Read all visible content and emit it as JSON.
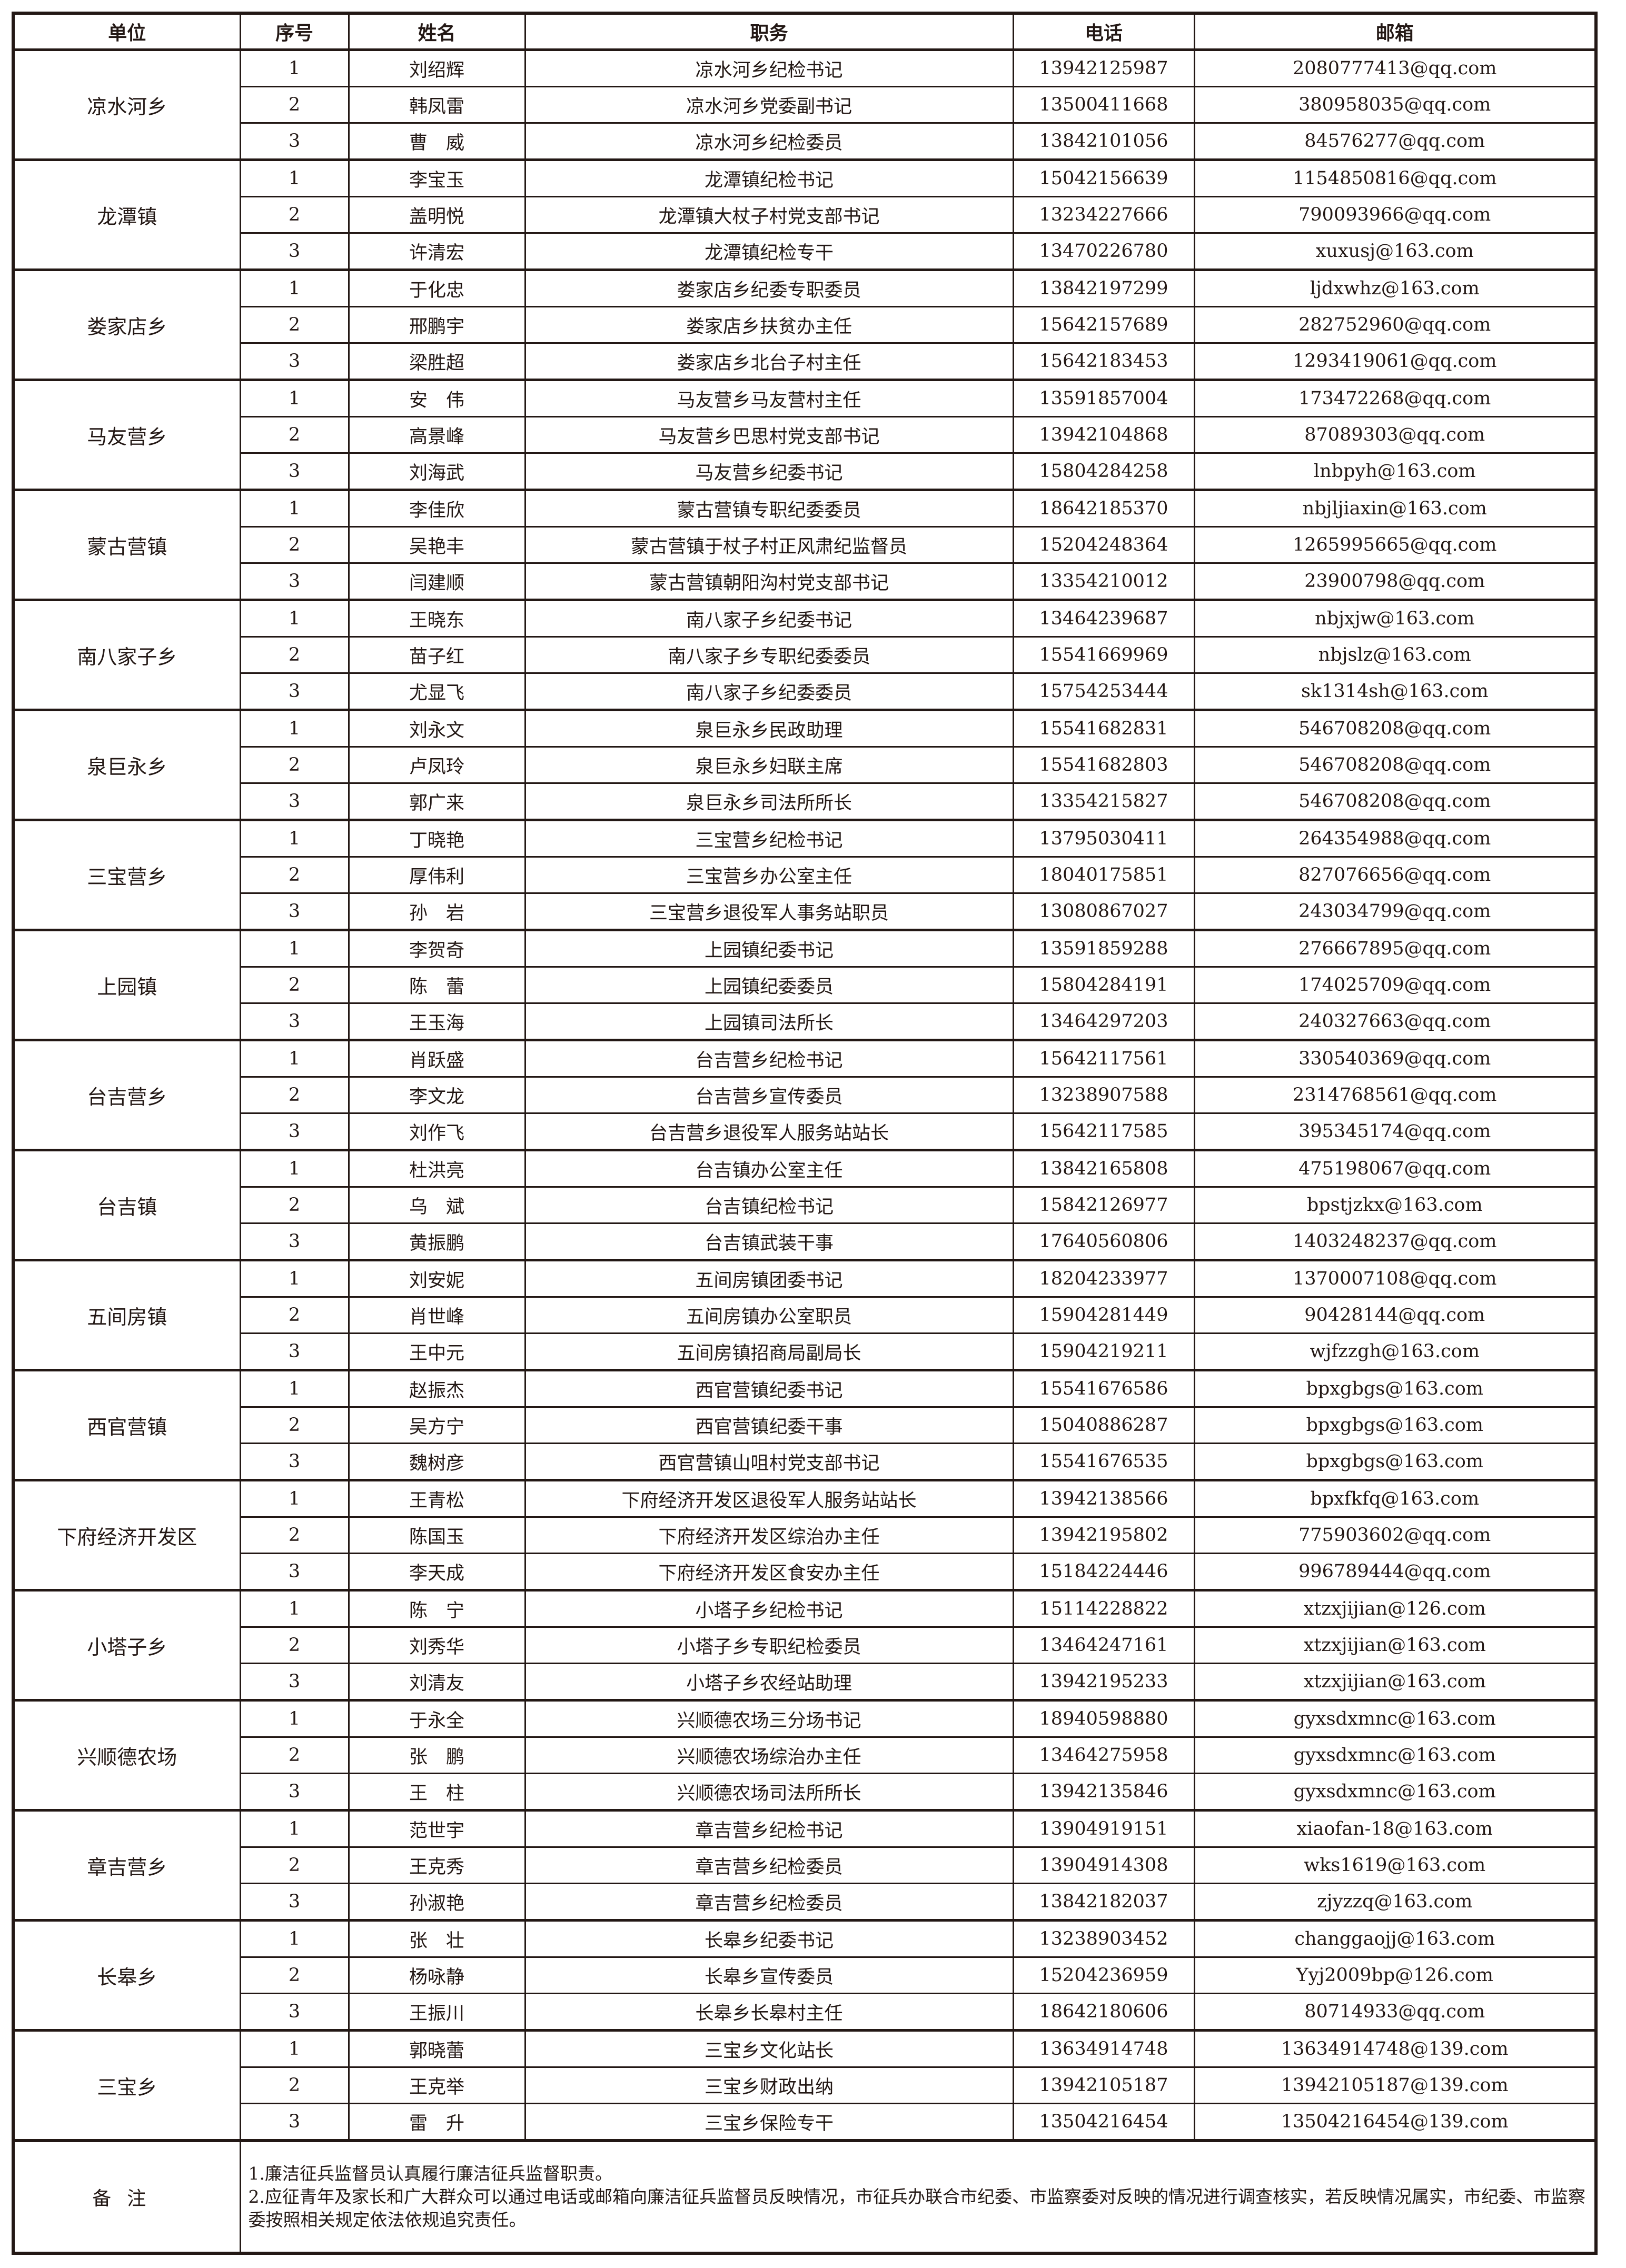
{
  "headers": [
    "单位",
    "序号",
    "姓名",
    "职务",
    "电话",
    "邮箱"
  ],
  "groups": [
    {
      "unit": "凉水河乡",
      "rows": [
        {
          "no": "1",
          "name": "刘绍辉",
          "title": "凉水河乡纪检书记",
          "phone": "13942125987",
          "email": "2080777413@qq.com"
        },
        {
          "no": "2",
          "name": "韩凤雷",
          "title": "凉水河乡党委副书记",
          "phone": "13500411668",
          "email": "380958035@qq.com"
        },
        {
          "no": "3",
          "name": "曹　威",
          "title": "凉水河乡纪检委员",
          "phone": "13842101056",
          "email": "84576277@qq.com"
        }
      ]
    },
    {
      "unit": "龙潭镇",
      "rows": [
        {
          "no": "1",
          "name": "李宝玉",
          "title": "龙潭镇纪检书记",
          "phone": "15042156639",
          "email": "1154850816@qq.com"
        },
        {
          "no": "2",
          "name": "盖明悦",
          "title": "龙潭镇大杖子村党支部书记",
          "phone": "13234227666",
          "email": "790093966@qq.com"
        },
        {
          "no": "3",
          "name": "许清宏",
          "title": "龙潭镇纪检专干",
          "phone": "13470226780",
          "email": "xuxusj@163.com"
        }
      ]
    },
    {
      "unit": "娄家店乡",
      "rows": [
        {
          "no": "1",
          "name": "于化忠",
          "title": "娄家店乡纪委专职委员",
          "phone": "13842197299",
          "email": "ljdxwhz@163.com"
        },
        {
          "no": "2",
          "name": "邢鹏宇",
          "title": "娄家店乡扶贫办主任",
          "phone": "15642157689",
          "email": "282752960@qq.com"
        },
        {
          "no": "3",
          "name": "梁胜超",
          "title": "娄家店乡北台子村主任",
          "phone": "15642183453",
          "email": "1293419061@qq.com"
        }
      ]
    },
    {
      "unit": "马友营乡",
      "rows": [
        {
          "no": "1",
          "name": "安　伟",
          "title": "马友营乡马友营村主任",
          "phone": "13591857004",
          "email": "173472268@qq.com"
        },
        {
          "no": "2",
          "name": "高景峰",
          "title": "马友营乡巴思村党支部书记",
          "phone": "13942104868",
          "email": "87089303@qq.com"
        },
        {
          "no": "3",
          "name": "刘海武",
          "title": "马友营乡纪委书记",
          "phone": "15804284258",
          "email": "lnbpyh@163.com"
        }
      ]
    },
    {
      "unit": "蒙古营镇",
      "rows": [
        {
          "no": "1",
          "name": "李佳欣",
          "title": "蒙古营镇专职纪委委员",
          "phone": "18642185370",
          "email": "nbjljiaxin@163.com"
        },
        {
          "no": "2",
          "name": "吴艳丰",
          "title": "蒙古营镇于杖子村正风肃纪监督员",
          "phone": "15204248364",
          "email": "1265995665@qq.com"
        },
        {
          "no": "3",
          "name": "闫建顺",
          "title": "蒙古营镇朝阳沟村党支部书记",
          "phone": "13354210012",
          "email": "23900798@qq.com"
        }
      ]
    },
    {
      "unit": "南八家子乡",
      "rows": [
        {
          "no": "1",
          "name": "王晓东",
          "title": "南八家子乡纪委书记",
          "phone": "13464239687",
          "email": "nbjxjw@163.com"
        },
        {
          "no": "2",
          "name": "苗子红",
          "title": "南八家子乡专职纪委委员",
          "phone": "15541669969",
          "email": "nbjslz@163.com"
        },
        {
          "no": "3",
          "name": "尤显飞",
          "title": "南八家子乡纪委委员",
          "phone": "15754253444",
          "email": "sk1314sh@163.com"
        }
      ]
    },
    {
      "unit": "泉巨永乡",
      "rows": [
        {
          "no": "1",
          "name": "刘永文",
          "title": "泉巨永乡民政助理",
          "phone": "15541682831",
          "email": "546708208@qq.com"
        },
        {
          "no": "2",
          "name": "卢凤玲",
          "title": "泉巨永乡妇联主席",
          "phone": "15541682803",
          "email": "546708208@qq.com"
        },
        {
          "no": "3",
          "name": "郭广来",
          "title": "泉巨永乡司法所所长",
          "phone": "13354215827",
          "email": "546708208@qq.com"
        }
      ]
    },
    {
      "unit": "三宝营乡",
      "rows": [
        {
          "no": "1",
          "name": "丁晓艳",
          "title": "三宝营乡纪检书记",
          "phone": "13795030411",
          "email": "264354988@qq.com"
        },
        {
          "no": "2",
          "name": "厚伟利",
          "title": "三宝营乡办公室主任",
          "phone": "18040175851",
          "email": "827076656@qq.com"
        },
        {
          "no": "3",
          "name": "孙　岩",
          "title": "三宝营乡退役军人事务站职员",
          "phone": "13080867027",
          "email": "243034799@qq.com"
        }
      ]
    },
    {
      "unit": "上园镇",
      "rows": [
        {
          "no": "1",
          "name": "李贺奇",
          "title": "上园镇纪委书记",
          "phone": "13591859288",
          "email": "276667895@qq.com"
        },
        {
          "no": "2",
          "name": "陈　蕾",
          "title": "上园镇纪委委员",
          "phone": "15804284191",
          "email": "174025709@qq.com"
        },
        {
          "no": "3",
          "name": "王玉海",
          "title": "上园镇司法所长",
          "phone": "13464297203",
          "email": "240327663@qq.com"
        }
      ]
    },
    {
      "unit": "台吉营乡",
      "rows": [
        {
          "no": "1",
          "name": "肖跃盛",
          "title": "台吉营乡纪检书记",
          "phone": "15642117561",
          "email": "330540369@qq.com"
        },
        {
          "no": "2",
          "name": "李文龙",
          "title": "台吉营乡宣传委员",
          "phone": "13238907588",
          "email": "2314768561@qq.com"
        },
        {
          "no": "3",
          "name": "刘作飞",
          "title": "台吉营乡退役军人服务站站长",
          "phone": "15642117585",
          "email": "395345174@qq.com"
        }
      ]
    },
    {
      "unit": "台吉镇",
      "rows": [
        {
          "no": "1",
          "name": "杜洪亮",
          "title": "台吉镇办公室主任",
          "phone": "13842165808",
          "email": "475198067@qq.com"
        },
        {
          "no": "2",
          "name": "乌　斌",
          "title": "台吉镇纪检书记",
          "phone": "15842126977",
          "email": "bpstjzkx@163.com"
        },
        {
          "no": "3",
          "name": "黄振鹏",
          "title": "台吉镇武装干事",
          "phone": "17640560806",
          "email": "1403248237@qq.com"
        }
      ]
    },
    {
      "unit": "五间房镇",
      "rows": [
        {
          "no": "1",
          "name": "刘安妮",
          "title": "五间房镇团委书记",
          "phone": "18204233977",
          "email": "1370007108@qq.com"
        },
        {
          "no": "2",
          "name": "肖世峰",
          "title": "五间房镇办公室职员",
          "phone": "15904281449",
          "email": "90428144@qq.com"
        },
        {
          "no": "3",
          "name": "王中元",
          "title": "五间房镇招商局副局长",
          "phone": "15904219211",
          "email": "wjfzzgh@163.com"
        }
      ]
    },
    {
      "unit": "西官营镇",
      "rows": [
        {
          "no": "1",
          "name": "赵振杰",
          "title": "西官营镇纪委书记",
          "phone": "15541676586",
          "email": "bpxgbgs@163.com"
        },
        {
          "no": "2",
          "name": "吴方宁",
          "title": "西官营镇纪委干事",
          "phone": "15040886287",
          "email": "bpxgbgs@163.com"
        },
        {
          "no": "3",
          "name": "魏树彦",
          "title": "西官营镇山咀村党支部书记",
          "phone": "15541676535",
          "email": "bpxgbgs@163.com"
        }
      ]
    },
    {
      "unit": "下府经济开发区",
      "rows": [
        {
          "no": "1",
          "name": "王青松",
          "title": "下府经济开发区退役军人服务站站长",
          "phone": "13942138566",
          "email": "bpxfkfq@163.com"
        },
        {
          "no": "2",
          "name": "陈国玉",
          "title": "下府经济开发区综治办主任",
          "phone": "13942195802",
          "email": "775903602@qq.com"
        },
        {
          "no": "3",
          "name": "李天成",
          "title": "下府经济开发区食安办主任",
          "phone": "15184224446",
          "email": "996789444@qq.com"
        }
      ]
    },
    {
      "unit": "小塔子乡",
      "rows": [
        {
          "no": "1",
          "name": "陈　宁",
          "title": "小塔子乡纪检书记",
          "phone": "15114228822",
          "email": "xtzxjijian@126.com"
        },
        {
          "no": "2",
          "name": "刘秀华",
          "title": "小塔子乡专职纪检委员",
          "phone": "13464247161",
          "email": "xtzxjijian@163.com"
        },
        {
          "no": "3",
          "name": "刘清友",
          "title": "小塔子乡农经站助理",
          "phone": "13942195233",
          "email": "xtzxjijian@163.com"
        }
      ]
    },
    {
      "unit": "兴顺德农场",
      "rows": [
        {
          "no": "1",
          "name": "于永全",
          "title": "兴顺德农场三分场书记",
          "phone": "18940598880",
          "email": "gyxsdxmnc@163.com"
        },
        {
          "no": "2",
          "name": "张　鹏",
          "title": "兴顺德农场综治办主任",
          "phone": "13464275958",
          "email": "gyxsdxmnc@163.com"
        },
        {
          "no": "3",
          "name": "王　柱",
          "title": "兴顺德农场司法所所长",
          "phone": "13942135846",
          "email": "gyxsdxmnc@163.com"
        }
      ]
    },
    {
      "unit": "章吉营乡",
      "rows": [
        {
          "no": "1",
          "name": "范世宇",
          "title": "章吉营乡纪检书记",
          "phone": "13904919151",
          "email": "xiaofan-18@163.com"
        },
        {
          "no": "2",
          "name": "王克秀",
          "title": "章吉营乡纪检委员",
          "phone": "13904914308",
          "email": "wks1619@163.com"
        },
        {
          "no": "3",
          "name": "孙淑艳",
          "title": "章吉营乡纪检委员",
          "phone": "13842182037",
          "email": "zjyzzq@163.com"
        }
      ]
    },
    {
      "unit": "长皋乡",
      "rows": [
        {
          "no": "1",
          "name": "张　壮",
          "title": "长皋乡纪委书记",
          "phone": "13238903452",
          "email": "changgaojj@163.com"
        },
        {
          "no": "2",
          "name": "杨咏静",
          "title": "长皋乡宣传委员",
          "phone": "15204236959",
          "email": "Yyj2009bp@126.com"
        },
        {
          "no": "3",
          "name": "王振川",
          "title": "长皋乡长皋村主任",
          "phone": "18642180606",
          "email": "80714933@qq.com"
        }
      ]
    },
    {
      "unit": "三宝乡",
      "rows": [
        {
          "no": "1",
          "name": "郭晓蕾",
          "title": "三宝乡文化站长",
          "phone": "13634914748",
          "email": "13634914748@139.com"
        },
        {
          "no": "2",
          "name": "王克举",
          "title": "三宝乡财政出纳",
          "phone": "13942105187",
          "email": "13942105187@139.com"
        },
        {
          "no": "3",
          "name": "雷　升",
          "title": "三宝乡保险专干",
          "phone": "13504216454",
          "email": "13504216454@139.com"
        }
      ]
    }
  ],
  "notes": {
    "label": "备注",
    "lines": [
      "1.廉洁征兵监督员认真履行廉洁征兵监督职责。",
      "2.应征青年及家长和广大群众可以通过电话或邮箱向廉洁征兵监督员反映情况，市征兵办联合市纪委、市监察委对反映的情况进行调查核实，若反映情况属实，市纪委、市监察委按照相关规定依法依规追究责任。"
    ]
  }
}
